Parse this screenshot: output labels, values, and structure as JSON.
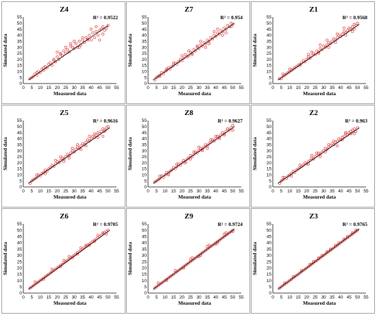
{
  "figure": {
    "xlabel": "Measured data",
    "ylabel": "Simulated data",
    "colors": {
      "points": "#e23b3b",
      "fit_line": "#000000",
      "border": "#9e9e9e"
    },
    "x_ticks": [
      0,
      5,
      10,
      15,
      20,
      25,
      30,
      35,
      40,
      45,
      50,
      55
    ],
    "y_ticks": [
      0,
      5,
      10,
      15,
      20,
      25,
      30,
      35,
      40,
      45,
      50,
      55
    ]
  },
  "chart_data": [
    {
      "type": "scatter",
      "title": "Z4",
      "r2_label": "R² = 0.9522",
      "xlabel": "Measured data",
      "ylabel": "Simulated data",
      "xlim": [
        0,
        55
      ],
      "ylim": [
        0,
        55
      ],
      "fit_line": {
        "x": [
          3,
          50
        ],
        "y": [
          3,
          48
        ]
      },
      "x": [
        4,
        5,
        6,
        7,
        8,
        9,
        10,
        11,
        12,
        13,
        14,
        15,
        16,
        17,
        18,
        19,
        20,
        21,
        22,
        23,
        24,
        25,
        26,
        27,
        28,
        29,
        30,
        31,
        32,
        33,
        34,
        35,
        36,
        37,
        38,
        39,
        40,
        41,
        42,
        43,
        44,
        45,
        46,
        47,
        48,
        49,
        50,
        8,
        12,
        18,
        22,
        28,
        33,
        38,
        43,
        47,
        20,
        25,
        30,
        35,
        40,
        45
      ],
      "y": [
        4,
        5,
        6,
        8,
        7,
        10,
        9,
        12,
        11,
        14,
        13,
        16,
        17,
        15,
        19,
        18,
        22,
        20,
        24,
        23,
        27,
        25,
        28,
        26,
        31,
        30,
        29,
        33,
        30,
        35,
        32,
        36,
        34,
        38,
        37,
        40,
        36,
        42,
        38,
        43,
        40,
        44,
        45,
        47,
        44,
        46,
        48,
        9,
        13,
        20,
        25,
        33,
        30,
        36,
        47,
        41,
        26,
        30,
        35,
        38,
        45,
        36
      ]
    },
    {
      "type": "scatter",
      "title": "Z7",
      "r2_label": "R² = 0.954",
      "xlabel": "Measured data",
      "ylabel": "Simulated data",
      "xlim": [
        0,
        55
      ],
      "ylim": [
        0,
        55
      ],
      "fit_line": {
        "x": [
          3,
          51
        ],
        "y": [
          3,
          50
        ]
      },
      "x": [
        4,
        5,
        6,
        7,
        8,
        9,
        10,
        11,
        12,
        13,
        14,
        15,
        16,
        17,
        18,
        19,
        20,
        21,
        22,
        23,
        24,
        25,
        26,
        27,
        28,
        29,
        30,
        31,
        32,
        33,
        34,
        35,
        36,
        37,
        38,
        39,
        40,
        41,
        42,
        43,
        44,
        45,
        46,
        47,
        48,
        49,
        50,
        7,
        11,
        15,
        20,
        26,
        31,
        36,
        41,
        46,
        24,
        29,
        34,
        39,
        44,
        49
      ],
      "y": [
        3,
        5,
        6,
        7,
        9,
        8,
        10,
        11,
        13,
        12,
        14,
        15,
        17,
        16,
        18,
        20,
        19,
        21,
        24,
        22,
        23,
        26,
        25,
        28,
        27,
        30,
        29,
        32,
        31,
        34,
        33,
        36,
        35,
        38,
        37,
        40,
        39,
        42,
        41,
        44,
        43,
        46,
        45,
        48,
        47,
        50,
        49,
        6,
        12,
        17,
        23,
        24,
        35,
        33,
        45,
        42,
        27,
        31,
        30,
        43,
        40,
        47
      ]
    },
    {
      "type": "scatter",
      "title": "Z1",
      "r2_label": "R² = 0.9568",
      "xlabel": "Measured data",
      "ylabel": "Simulated data",
      "xlim": [
        0,
        55
      ],
      "ylim": [
        0,
        55
      ],
      "fit_line": {
        "x": [
          3,
          51
        ],
        "y": [
          3,
          49
        ]
      },
      "x": [
        4,
        5,
        6,
        7,
        8,
        9,
        10,
        11,
        12,
        13,
        14,
        15,
        16,
        17,
        18,
        19,
        20,
        21,
        22,
        23,
        24,
        25,
        26,
        27,
        28,
        29,
        30,
        31,
        32,
        33,
        34,
        35,
        36,
        37,
        38,
        39,
        40,
        41,
        42,
        43,
        44,
        45,
        46,
        47,
        48,
        49,
        50,
        6,
        10,
        16,
        21,
        27,
        32,
        37,
        42,
        47,
        23,
        28,
        33,
        38,
        43,
        48
      ],
      "y": [
        4,
        4,
        6,
        7,
        8,
        9,
        10,
        11,
        12,
        13,
        14,
        15,
        16,
        17,
        19,
        18,
        20,
        22,
        21,
        23,
        25,
        24,
        27,
        26,
        29,
        28,
        31,
        30,
        32,
        34,
        33,
        35,
        37,
        36,
        38,
        40,
        39,
        41,
        43,
        42,
        44,
        46,
        45,
        47,
        49,
        48,
        50,
        8,
        12,
        15,
        24,
        25,
        36,
        34,
        46,
        43,
        26,
        32,
        30,
        41,
        40,
        45
      ]
    },
    {
      "type": "scatter",
      "title": "Z5",
      "r2_label": "R² = 0.9616",
      "xlabel": "Measured data",
      "ylabel": "Simulated data",
      "xlim": [
        0,
        55
      ],
      "ylim": [
        0,
        55
      ],
      "fit_line": {
        "x": [
          3,
          51
        ],
        "y": [
          3,
          49
        ]
      },
      "x": [
        4,
        5,
        6,
        7,
        8,
        9,
        10,
        11,
        12,
        13,
        14,
        15,
        16,
        17,
        18,
        19,
        20,
        21,
        22,
        23,
        24,
        25,
        26,
        27,
        28,
        29,
        30,
        31,
        32,
        33,
        34,
        35,
        36,
        37,
        38,
        39,
        40,
        41,
        42,
        43,
        44,
        45,
        46,
        47,
        48,
        49,
        50,
        8,
        13,
        19,
        24,
        29,
        34,
        39,
        44,
        48,
        22,
        27,
        32,
        37,
        42,
        47
      ],
      "y": [
        3,
        5,
        6,
        7,
        8,
        10,
        9,
        11,
        12,
        14,
        13,
        15,
        16,
        18,
        17,
        19,
        21,
        20,
        22,
        24,
        23,
        25,
        27,
        26,
        28,
        30,
        29,
        31,
        33,
        32,
        34,
        36,
        35,
        37,
        39,
        38,
        40,
        42,
        41,
        43,
        45,
        44,
        46,
        48,
        47,
        49,
        50,
        10,
        11,
        22,
        21,
        32,
        31,
        42,
        41,
        46,
        25,
        24,
        35,
        34,
        44,
        42
      ]
    },
    {
      "type": "scatter",
      "title": "Z8",
      "r2_label": "R² = 0.9627",
      "xlabel": "Measured data",
      "ylabel": "Simulated data",
      "xlim": [
        0,
        55
      ],
      "ylim": [
        0,
        55
      ],
      "fit_line": {
        "x": [
          3,
          51
        ],
        "y": [
          3,
          50
        ]
      },
      "x": [
        4,
        5,
        6,
        7,
        8,
        9,
        10,
        11,
        12,
        13,
        14,
        15,
        16,
        17,
        18,
        19,
        20,
        21,
        22,
        23,
        24,
        25,
        26,
        27,
        28,
        29,
        30,
        31,
        32,
        33,
        34,
        35,
        36,
        37,
        38,
        39,
        40,
        41,
        42,
        43,
        44,
        45,
        46,
        47,
        48,
        49,
        50,
        7,
        12,
        17,
        22,
        27,
        32,
        37,
        42,
        47,
        25,
        30,
        35,
        40,
        45,
        50
      ],
      "y": [
        4,
        5,
        6,
        7,
        9,
        8,
        10,
        12,
        11,
        13,
        14,
        16,
        15,
        17,
        19,
        18,
        20,
        22,
        21,
        23,
        24,
        26,
        25,
        27,
        29,
        28,
        30,
        32,
        31,
        33,
        35,
        34,
        36,
        37,
        39,
        38,
        40,
        42,
        41,
        43,
        45,
        44,
        46,
        48,
        47,
        49,
        51,
        9,
        10,
        19,
        20,
        29,
        30,
        39,
        40,
        48,
        23,
        33,
        32,
        42,
        43,
        47
      ]
    },
    {
      "type": "scatter",
      "title": "Z2",
      "r2_label": "R² = 0.963",
      "xlabel": "Measured data",
      "ylabel": "Simulated data",
      "xlim": [
        0,
        55
      ],
      "ylim": [
        0,
        55
      ],
      "fit_line": {
        "x": [
          3,
          51
        ],
        "y": [
          3,
          49
        ]
      },
      "x": [
        4,
        5,
        6,
        7,
        8,
        9,
        10,
        11,
        12,
        13,
        14,
        15,
        16,
        17,
        18,
        19,
        20,
        21,
        22,
        23,
        24,
        25,
        26,
        27,
        28,
        29,
        30,
        31,
        32,
        33,
        34,
        35,
        36,
        37,
        38,
        39,
        40,
        41,
        42,
        43,
        44,
        45,
        46,
        47,
        48,
        49,
        50,
        6,
        11,
        16,
        21,
        26,
        31,
        36,
        41,
        46,
        23,
        28,
        33,
        38,
        43,
        48
      ],
      "y": [
        3,
        5,
        6,
        8,
        7,
        9,
        10,
        11,
        13,
        12,
        14,
        15,
        16,
        17,
        18,
        20,
        19,
        21,
        22,
        24,
        23,
        25,
        26,
        28,
        27,
        29,
        30,
        32,
        31,
        33,
        34,
        36,
        35,
        37,
        38,
        40,
        39,
        41,
        42,
        44,
        43,
        45,
        46,
        47,
        48,
        46,
        49,
        8,
        9,
        18,
        19,
        28,
        29,
        38,
        39,
        44,
        26,
        25,
        35,
        34,
        45,
        44
      ]
    },
    {
      "type": "scatter",
      "title": "Z6",
      "r2_label": "R² = 0.9705",
      "xlabel": "Measured data",
      "ylabel": "Simulated data",
      "xlim": [
        0,
        55
      ],
      "ylim": [
        0,
        55
      ],
      "fit_line": {
        "x": [
          3,
          51
        ],
        "y": [
          3,
          50
        ]
      },
      "x": [
        4,
        5,
        6,
        7,
        8,
        9,
        10,
        11,
        12,
        13,
        14,
        15,
        16,
        17,
        18,
        19,
        20,
        21,
        22,
        23,
        24,
        25,
        26,
        27,
        28,
        29,
        30,
        31,
        32,
        33,
        34,
        35,
        36,
        37,
        38,
        39,
        40,
        41,
        42,
        43,
        44,
        45,
        46,
        47,
        48,
        49,
        50,
        7,
        12,
        17,
        22,
        27,
        32,
        37,
        42,
        47,
        24,
        29,
        34,
        39,
        44,
        49
      ],
      "y": [
        4,
        5,
        6,
        7,
        8,
        9,
        10,
        11,
        12,
        13,
        14,
        15,
        16,
        17,
        18,
        19,
        20,
        21,
        22,
        23,
        24,
        25,
        26,
        27,
        28,
        29,
        30,
        31,
        32,
        33,
        34,
        35,
        36,
        37,
        38,
        39,
        40,
        41,
        42,
        43,
        44,
        45,
        46,
        47,
        48,
        49,
        50,
        9,
        11,
        19,
        21,
        29,
        31,
        38,
        41,
        48,
        26,
        28,
        36,
        38,
        46,
        47
      ]
    },
    {
      "type": "scatter",
      "title": "Z9",
      "r2_label": "R² = 0.9724",
      "xlabel": "Measured data",
      "ylabel": "Simulated data",
      "xlim": [
        0,
        55
      ],
      "ylim": [
        0,
        55
      ],
      "fit_line": {
        "x": [
          3,
          51
        ],
        "y": [
          3,
          51
        ]
      },
      "x": [
        4,
        5,
        6,
        7,
        8,
        9,
        10,
        11,
        12,
        13,
        14,
        15,
        16,
        17,
        18,
        19,
        20,
        21,
        22,
        23,
        24,
        25,
        26,
        27,
        28,
        29,
        30,
        31,
        32,
        33,
        34,
        35,
        36,
        37,
        38,
        39,
        40,
        41,
        42,
        43,
        44,
        45,
        46,
        47,
        48,
        49,
        50,
        6,
        11,
        16,
        21,
        26,
        31,
        36,
        41,
        46,
        25,
        30,
        35,
        40,
        45,
        50
      ],
      "y": [
        4,
        5,
        6,
        7,
        8,
        9,
        10,
        11,
        12,
        13,
        14,
        15,
        16,
        17,
        18,
        19,
        20,
        21,
        22,
        23,
        24,
        25,
        26,
        27,
        28,
        29,
        30,
        31,
        32,
        33,
        34,
        35,
        36,
        37,
        38,
        39,
        40,
        41,
        42,
        43,
        44,
        45,
        46,
        47,
        48,
        49,
        50,
        8,
        10,
        18,
        20,
        28,
        30,
        38,
        40,
        48,
        27,
        29,
        37,
        39,
        47,
        49
      ]
    },
    {
      "type": "scatter",
      "title": "Z3",
      "r2_label": "R² = 0.9765",
      "xlabel": "Measured data",
      "ylabel": "Simulated data",
      "xlim": [
        0,
        55
      ],
      "ylim": [
        0,
        55
      ],
      "fit_line": {
        "x": [
          3,
          51
        ],
        "y": [
          3,
          51
        ]
      },
      "x": [
        4,
        5,
        6,
        7,
        8,
        9,
        10,
        11,
        12,
        13,
        14,
        15,
        16,
        17,
        18,
        19,
        20,
        21,
        22,
        23,
        24,
        25,
        26,
        27,
        28,
        29,
        30,
        31,
        32,
        33,
        34,
        35,
        36,
        37,
        38,
        39,
        40,
        41,
        42,
        43,
        44,
        45,
        46,
        47,
        48,
        49,
        50,
        7,
        12,
        17,
        22,
        27,
        32,
        37,
        42,
        47,
        24,
        29,
        34,
        39,
        44,
        49
      ],
      "y": [
        4,
        5,
        6,
        7,
        8,
        9,
        10,
        11,
        12,
        13,
        14,
        15,
        16,
        17,
        18,
        19,
        20,
        21,
        22,
        23,
        24,
        25,
        26,
        27,
        28,
        29,
        30,
        31,
        32,
        33,
        34,
        35,
        36,
        37,
        38,
        39,
        40,
        41,
        42,
        43,
        44,
        45,
        46,
        47,
        48,
        49,
        50,
        8,
        13,
        18,
        23,
        28,
        33,
        38,
        43,
        48,
        25,
        30,
        35,
        40,
        45,
        50
      ]
    }
  ]
}
